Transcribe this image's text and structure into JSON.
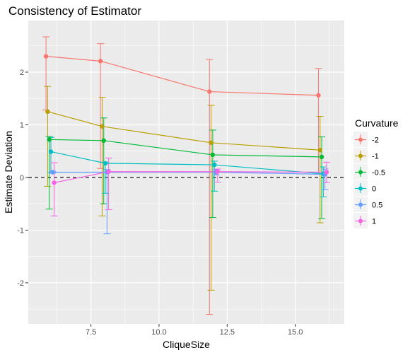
{
  "chart_data": {
    "type": "line",
    "title": "Consistency of Estimator",
    "xlabel": "CliqueSize",
    "ylabel": "Estimate Deviation",
    "xlim": [
      5.2,
      16.8
    ],
    "ylim": [
      -2.78,
      2.98
    ],
    "x_ticks": [
      7.5,
      10.0,
      12.5,
      15.0
    ],
    "x_tick_labels": [
      "7.5",
      "10.0",
      "12.5",
      "15.0"
    ],
    "y_ticks": [
      -2,
      -1,
      0,
      1,
      2
    ],
    "y_tick_labels": [
      "-2",
      "-1",
      "0",
      "1",
      "2"
    ],
    "grid": true,
    "reference_line": {
      "y": 0,
      "style": "dashed"
    },
    "legend": {
      "title": "Curvature",
      "position": "right"
    },
    "series": [
      {
        "name": "-2",
        "color": "#F8766D",
        "points": [
          {
            "x": 5.85,
            "y": 2.3,
            "ymin": 1.28,
            "ymax": 2.67
          },
          {
            "x": 7.85,
            "y": 2.21,
            "ymin": 0.17,
            "ymax": 2.54
          },
          {
            "x": 11.85,
            "y": 1.63,
            "ymin": -2.6,
            "ymax": 2.24
          },
          {
            "x": 15.85,
            "y": 1.56,
            "ymin": 0.06,
            "ymax": 2.07
          }
        ]
      },
      {
        "name": "-1",
        "color": "#B79F00",
        "points": [
          {
            "x": 5.91,
            "y": 1.25,
            "ymin": -0.17,
            "ymax": 1.73
          },
          {
            "x": 7.91,
            "y": 0.97,
            "ymin": -0.73,
            "ymax": 1.52
          },
          {
            "x": 11.91,
            "y": 0.66,
            "ymin": -2.14,
            "ymax": 1.37
          },
          {
            "x": 15.91,
            "y": 0.52,
            "ymin": -0.86,
            "ymax": 1.16
          }
        ]
      },
      {
        "name": "-0.5",
        "color": "#00BA38",
        "points": [
          {
            "x": 5.97,
            "y": 0.72,
            "ymin": -0.6,
            "ymax": 0.78
          },
          {
            "x": 7.97,
            "y": 0.7,
            "ymin": -0.5,
            "ymax": 1.13
          },
          {
            "x": 11.97,
            "y": 0.43,
            "ymin": -0.76,
            "ymax": 0.9
          },
          {
            "x": 15.97,
            "y": 0.39,
            "ymin": -0.78,
            "ymax": 0.77
          }
        ]
      },
      {
        "name": "0",
        "color": "#00BFC4",
        "points": [
          {
            "x": 6.03,
            "y": 0.49,
            "ymin": 0.1,
            "ymax": 0.76
          },
          {
            "x": 8.03,
            "y": 0.27,
            "ymin": -0.3,
            "ymax": 0.29
          },
          {
            "x": 12.03,
            "y": 0.24,
            "ymin": -0.26,
            "ymax": 0.31
          },
          {
            "x": 16.03,
            "y": 0.07,
            "ymin": -0.37,
            "ymax": 0.2
          }
        ]
      },
      {
        "name": "0.5",
        "color": "#619CFF",
        "points": [
          {
            "x": 6.09,
            "y": 0.1,
            "ymin": 0.08,
            "ymax": 0.12
          },
          {
            "x": 8.09,
            "y": 0.1,
            "ymin": -1.07,
            "ymax": 0.15
          },
          {
            "x": 12.09,
            "y": 0.1,
            "ymin": 0.05,
            "ymax": 0.15
          },
          {
            "x": 16.09,
            "y": 0.06,
            "ymin": -0.23,
            "ymax": 0.16
          }
        ]
      },
      {
        "name": "1",
        "color": "#F564E3",
        "points": [
          {
            "x": 6.15,
            "y": -0.1,
            "ymin": -0.73,
            "ymax": 0.28
          },
          {
            "x": 8.15,
            "y": 0.11,
            "ymin": -0.61,
            "ymax": 0.37
          },
          {
            "x": 12.15,
            "y": 0.11,
            "ymin": -0.09,
            "ymax": 0.16
          },
          {
            "x": 16.15,
            "y": 0.1,
            "ymin": -0.1,
            "ymax": 0.29
          }
        ]
      }
    ]
  }
}
